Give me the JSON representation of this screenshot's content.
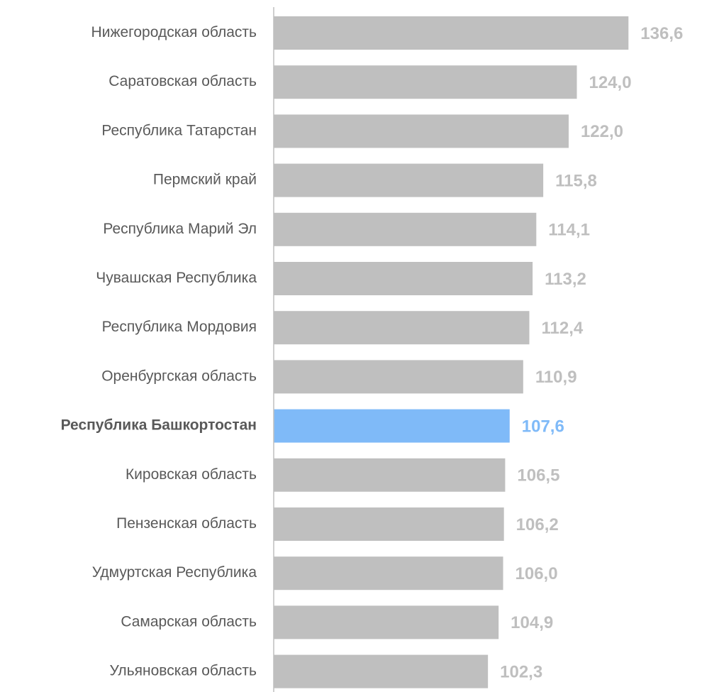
{
  "chart_data": {
    "type": "hbar",
    "categories": [
      "Нижегородская область",
      "Саратовская область",
      "Республика Татарстан",
      "Пермский край",
      "Республика Марий Эл",
      "Чувашская Республика",
      "Республика Мордовия",
      "Оренбургская область",
      "Республика Башкортостан",
      "Кировская область",
      "Пензенская область",
      "Удмуртская Республика",
      "Самарская область",
      "Ульяновская область"
    ],
    "values": [
      136.6,
      124.0,
      122.0,
      115.8,
      114.1,
      113.2,
      112.4,
      110.9,
      107.6,
      106.5,
      106.2,
      106.0,
      104.9,
      102.3
    ],
    "value_labels": [
      "136,6",
      "124,0",
      "122,0",
      "115,8",
      "114,1",
      "113,2",
      "112,4",
      "110,9",
      "107,6",
      "106,5",
      "106,2",
      "106,0",
      "104,9",
      "102,3"
    ],
    "color": "#bfbfbf",
    "colors": [
      "#bfbfbf",
      "#bfbfbf",
      "#bfbfbf",
      "#bfbfbf",
      "#bfbfbf",
      "#bfbfbf",
      "#bfbfbf",
      "#bfbfbf",
      "#7fbaf8",
      "#bfbfbf",
      "#bfbfbf",
      "#bfbfbf",
      "#bfbfbf",
      "#bfbfbf"
    ],
    "xlim": [
      50,
      150
    ]
  }
}
